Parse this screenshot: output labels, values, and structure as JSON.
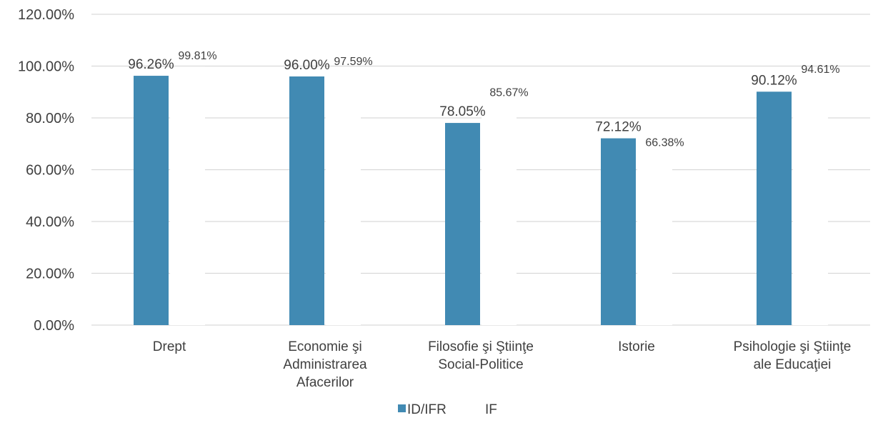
{
  "chart_data": {
    "type": "bar",
    "categories": [
      [
        "Drept"
      ],
      [
        "Economie şi",
        "Administrarea",
        "Afacerilor"
      ],
      [
        "Filosofie şi Ştiinţe",
        "Social-Politice"
      ],
      [
        "Istorie"
      ],
      [
        "Psihologie şi Ştiinţe",
        "ale Educaţiei"
      ]
    ],
    "series": [
      {
        "name": "ID/IFR",
        "color": "#418ab3",
        "values": [
          96.26,
          96.0,
          78.05,
          72.12,
          90.12
        ],
        "labels": [
          "96.26%",
          "96.00%",
          "78.05%",
          "72.12%",
          "90.12%"
        ]
      },
      {
        "name": "IF",
        "color": "#ffffff",
        "values": [
          99.81,
          97.59,
          85.67,
          66.38,
          94.61
        ],
        "labels": [
          "99.81%",
          "97.59%",
          "85.67%",
          "66.38%",
          "94.61%"
        ]
      }
    ],
    "ylim": [
      0,
      120
    ],
    "yticks": [
      "0.00%",
      "20.00%",
      "40.00%",
      "60.00%",
      "80.00%",
      "100.00%",
      "120.00%"
    ],
    "grid": true,
    "legend_position": "bottom"
  }
}
